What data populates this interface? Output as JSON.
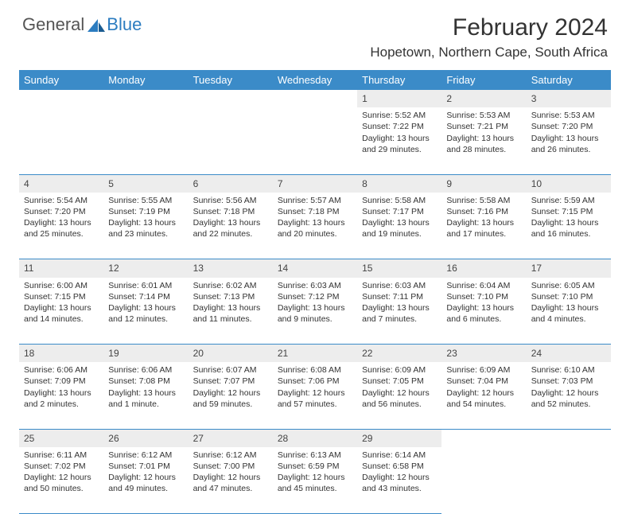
{
  "brand": {
    "first": "General",
    "second": "Blue"
  },
  "title": "February 2024",
  "location": "Hopetown, Northern Cape, South Africa",
  "colors": {
    "header_bg": "#3b8bc8",
    "header_text": "#ffffff",
    "daynum_bg": "#ededed",
    "rule": "#3b8bc8",
    "brand_blue": "#2b7cc0",
    "text": "#333333"
  },
  "day_headers": [
    "Sunday",
    "Monday",
    "Tuesday",
    "Wednesday",
    "Thursday",
    "Friday",
    "Saturday"
  ],
  "weeks": [
    [
      null,
      null,
      null,
      null,
      {
        "n": "1",
        "sr": "Sunrise: 5:52 AM",
        "ss": "Sunset: 7:22 PM",
        "dl": "Daylight: 13 hours and 29 minutes."
      },
      {
        "n": "2",
        "sr": "Sunrise: 5:53 AM",
        "ss": "Sunset: 7:21 PM",
        "dl": "Daylight: 13 hours and 28 minutes."
      },
      {
        "n": "3",
        "sr": "Sunrise: 5:53 AM",
        "ss": "Sunset: 7:20 PM",
        "dl": "Daylight: 13 hours and 26 minutes."
      }
    ],
    [
      {
        "n": "4",
        "sr": "Sunrise: 5:54 AM",
        "ss": "Sunset: 7:20 PM",
        "dl": "Daylight: 13 hours and 25 minutes."
      },
      {
        "n": "5",
        "sr": "Sunrise: 5:55 AM",
        "ss": "Sunset: 7:19 PM",
        "dl": "Daylight: 13 hours and 23 minutes."
      },
      {
        "n": "6",
        "sr": "Sunrise: 5:56 AM",
        "ss": "Sunset: 7:18 PM",
        "dl": "Daylight: 13 hours and 22 minutes."
      },
      {
        "n": "7",
        "sr": "Sunrise: 5:57 AM",
        "ss": "Sunset: 7:18 PM",
        "dl": "Daylight: 13 hours and 20 minutes."
      },
      {
        "n": "8",
        "sr": "Sunrise: 5:58 AM",
        "ss": "Sunset: 7:17 PM",
        "dl": "Daylight: 13 hours and 19 minutes."
      },
      {
        "n": "9",
        "sr": "Sunrise: 5:58 AM",
        "ss": "Sunset: 7:16 PM",
        "dl": "Daylight: 13 hours and 17 minutes."
      },
      {
        "n": "10",
        "sr": "Sunrise: 5:59 AM",
        "ss": "Sunset: 7:15 PM",
        "dl": "Daylight: 13 hours and 16 minutes."
      }
    ],
    [
      {
        "n": "11",
        "sr": "Sunrise: 6:00 AM",
        "ss": "Sunset: 7:15 PM",
        "dl": "Daylight: 13 hours and 14 minutes."
      },
      {
        "n": "12",
        "sr": "Sunrise: 6:01 AM",
        "ss": "Sunset: 7:14 PM",
        "dl": "Daylight: 13 hours and 12 minutes."
      },
      {
        "n": "13",
        "sr": "Sunrise: 6:02 AM",
        "ss": "Sunset: 7:13 PM",
        "dl": "Daylight: 13 hours and 11 minutes."
      },
      {
        "n": "14",
        "sr": "Sunrise: 6:03 AM",
        "ss": "Sunset: 7:12 PM",
        "dl": "Daylight: 13 hours and 9 minutes."
      },
      {
        "n": "15",
        "sr": "Sunrise: 6:03 AM",
        "ss": "Sunset: 7:11 PM",
        "dl": "Daylight: 13 hours and 7 minutes."
      },
      {
        "n": "16",
        "sr": "Sunrise: 6:04 AM",
        "ss": "Sunset: 7:10 PM",
        "dl": "Daylight: 13 hours and 6 minutes."
      },
      {
        "n": "17",
        "sr": "Sunrise: 6:05 AM",
        "ss": "Sunset: 7:10 PM",
        "dl": "Daylight: 13 hours and 4 minutes."
      }
    ],
    [
      {
        "n": "18",
        "sr": "Sunrise: 6:06 AM",
        "ss": "Sunset: 7:09 PM",
        "dl": "Daylight: 13 hours and 2 minutes."
      },
      {
        "n": "19",
        "sr": "Sunrise: 6:06 AM",
        "ss": "Sunset: 7:08 PM",
        "dl": "Daylight: 13 hours and 1 minute."
      },
      {
        "n": "20",
        "sr": "Sunrise: 6:07 AM",
        "ss": "Sunset: 7:07 PM",
        "dl": "Daylight: 12 hours and 59 minutes."
      },
      {
        "n": "21",
        "sr": "Sunrise: 6:08 AM",
        "ss": "Sunset: 7:06 PM",
        "dl": "Daylight: 12 hours and 57 minutes."
      },
      {
        "n": "22",
        "sr": "Sunrise: 6:09 AM",
        "ss": "Sunset: 7:05 PM",
        "dl": "Daylight: 12 hours and 56 minutes."
      },
      {
        "n": "23",
        "sr": "Sunrise: 6:09 AM",
        "ss": "Sunset: 7:04 PM",
        "dl": "Daylight: 12 hours and 54 minutes."
      },
      {
        "n": "24",
        "sr": "Sunrise: 6:10 AM",
        "ss": "Sunset: 7:03 PM",
        "dl": "Daylight: 12 hours and 52 minutes."
      }
    ],
    [
      {
        "n": "25",
        "sr": "Sunrise: 6:11 AM",
        "ss": "Sunset: 7:02 PM",
        "dl": "Daylight: 12 hours and 50 minutes."
      },
      {
        "n": "26",
        "sr": "Sunrise: 6:12 AM",
        "ss": "Sunset: 7:01 PM",
        "dl": "Daylight: 12 hours and 49 minutes."
      },
      {
        "n": "27",
        "sr": "Sunrise: 6:12 AM",
        "ss": "Sunset: 7:00 PM",
        "dl": "Daylight: 12 hours and 47 minutes."
      },
      {
        "n": "28",
        "sr": "Sunrise: 6:13 AM",
        "ss": "Sunset: 6:59 PM",
        "dl": "Daylight: 12 hours and 45 minutes."
      },
      {
        "n": "29",
        "sr": "Sunrise: 6:14 AM",
        "ss": "Sunset: 6:58 PM",
        "dl": "Daylight: 12 hours and 43 minutes."
      },
      null,
      null
    ]
  ]
}
